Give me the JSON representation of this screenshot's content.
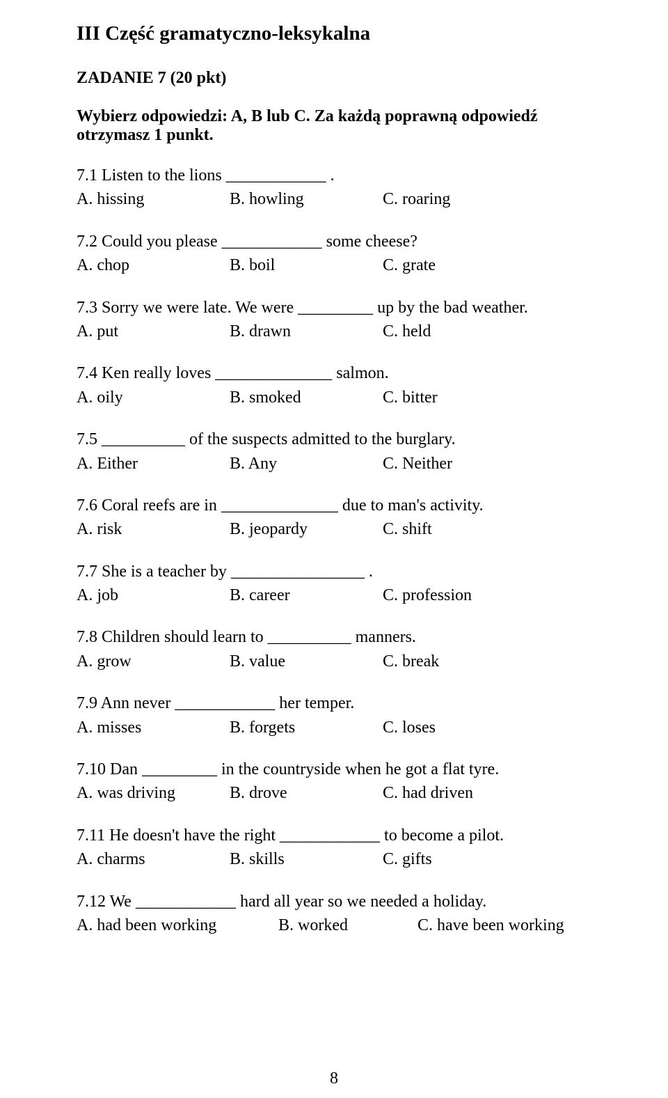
{
  "section_title": "III Część gramatyczno-leksykalna",
  "task_title": "ZADANIE 7 (20 pkt)",
  "instruction": "Wybierz odpowiedzi: A, B lub C. Za każdą poprawną odpowiedź otrzymasz 1 punkt.",
  "page_number": "8",
  "questions": [
    {
      "prompt": "7.1 Listen to the lions ____________ .",
      "a": "A. hissing",
      "b": "B. howling",
      "c": "C. roaring"
    },
    {
      "prompt": "7.2 Could you please ____________ some cheese?",
      "a": "A. chop",
      "b": "B. boil",
      "c": "C. grate"
    },
    {
      "prompt": "7.3 Sorry we  were late. We were _________ up by the bad weather.",
      "a": "A. put",
      "b": "B. drawn",
      "c": "C. held"
    },
    {
      "prompt": "7.4 Ken really loves ______________ salmon.",
      "a": "A. oily",
      "b": "B. smoked",
      "c": "C. bitter"
    },
    {
      "prompt": "7.5 __________ of the suspects admitted to the burglary.",
      "a": "A. Either",
      "b": "B. Any",
      "c": "C. Neither"
    },
    {
      "prompt": "7.6 Coral reefs are in ______________ due to man's activity.",
      "a": "A. risk",
      "b": "B. jeopardy",
      "c": "C. shift"
    },
    {
      "prompt": "7.7 She is a teacher by ________________ .",
      "a": "A. job",
      "b": "B. career",
      "c": "C. profession"
    },
    {
      "prompt": "7.8 Children should learn to __________ manners.",
      "a": "A. grow",
      "b": "B. value",
      "c": "C. break"
    },
    {
      "prompt": "7.9 Ann never ____________ her temper.",
      "a": "A. misses",
      "b": "B. forgets",
      "c": "C. loses"
    },
    {
      "prompt": "7.10 Dan _________ in the countryside when he got a flat tyre.",
      "a": "A. was driving",
      "b": "B. drove",
      "c": "C. had driven"
    },
    {
      "prompt": "7.11 He doesn't have the right ____________ to become a pilot.",
      "a": "A. charms",
      "b": "B. skills",
      "c": "C. gifts"
    },
    {
      "prompt": "7.12 We ____________ hard all year so we needed a holiday.",
      "a": "A. had been working",
      "b": "B. worked",
      "c": "C. have been working",
      "wide": true
    }
  ]
}
